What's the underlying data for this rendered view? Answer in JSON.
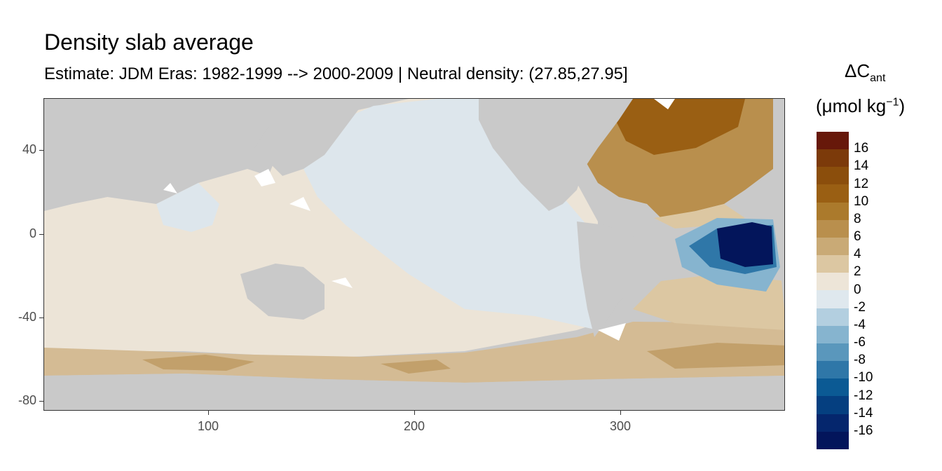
{
  "title": "Density slab average",
  "subtitle": "Estimate: JDM Eras: 1982-1999 --> 2000-2009 | Neutral density: (27.85,27.95]",
  "map": {
    "x_ticks": [
      "100",
      "200",
      "300"
    ],
    "y_ticks": [
      "40",
      "0",
      "-40",
      "-80"
    ],
    "x_range": [
      20,
      380
    ],
    "y_range": [
      -85,
      65
    ],
    "land_color": "#c9c9c9",
    "nodata_color": "#ffffff",
    "features": {
      "antarctica": "land",
      "southern_ocean_band": "positive 4 to 8",
      "indo_pacific": "near zero",
      "north_atlantic": "positive 8 to 16",
      "equatorial_atlantic": "negative below -16"
    }
  },
  "legend": {
    "title_symbol": "ΔC",
    "title_sub": "ant",
    "unit_prefix": "(μmol kg",
    "unit_sup": "−1",
    "unit_suffix": ")",
    "labels": [
      "16",
      "14",
      "12",
      "10",
      "8",
      "6",
      "4",
      "2",
      "0",
      "-2",
      "-4",
      "-6",
      "-8",
      "-10",
      "-12",
      "-14",
      "-16"
    ],
    "colors": [
      "#67180a",
      "#7c3a0a",
      "#8b4e0c",
      "#9a5f13",
      "#ab7a2c",
      "#b98f4d",
      "#c9aa76",
      "#dcc7a2",
      "#ede5d8",
      "#dfe8ee",
      "#b3cfe0",
      "#86b4cf",
      "#5a97bc",
      "#2f77a8",
      "#0b5a94",
      "#053f80",
      "#05266d",
      "#03155b"
    ]
  }
}
